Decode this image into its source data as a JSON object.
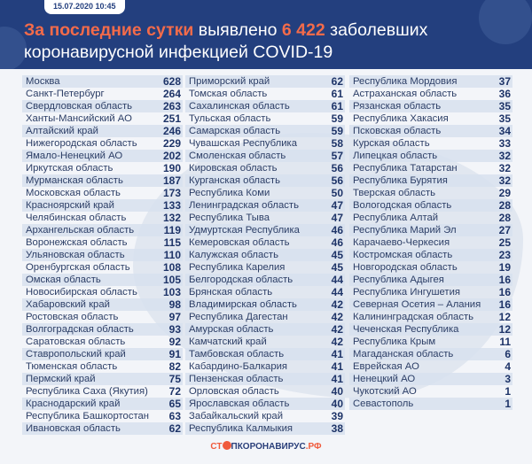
{
  "header": {
    "date": "15.07.2020 10:45",
    "title_hl": "За последние сутки",
    "title_mid": " выявлено ",
    "count": "6 422",
    "title_end": " заболевших",
    "title_line2": "коронавирусной инфекцией COVID-19"
  },
  "colors": {
    "header_bg": "#233f7e",
    "accent": "#f36b4a"
  },
  "columns": [
    [
      [
        "Москва",
        "628"
      ],
      [
        "Санкт-Петербург",
        "264"
      ],
      [
        "Свердловская область",
        "263"
      ],
      [
        "Ханты-Мансийский АО",
        "251"
      ],
      [
        "Алтайский край",
        "246"
      ],
      [
        "Нижегородская область",
        "229"
      ],
      [
        "Ямало-Ненецкий АО",
        "202"
      ],
      [
        "Иркутская область",
        "190"
      ],
      [
        "Мурманская область",
        "187"
      ],
      [
        "Московская область",
        "173"
      ],
      [
        "Красноярский край",
        "133"
      ],
      [
        "Челябинская область",
        "132"
      ],
      [
        "Архангельская область",
        "119"
      ],
      [
        "Воронежская область",
        "115"
      ],
      [
        "Ульяновская область",
        "110"
      ],
      [
        "Оренбургская область",
        "108"
      ],
      [
        "Омская область",
        "105"
      ],
      [
        "Новосибирская область",
        "103"
      ],
      [
        "Хабаровский край",
        "98"
      ],
      [
        "Ростовская область",
        "97"
      ],
      [
        "Волгоградская область",
        "93"
      ],
      [
        "Саратовская область",
        "92"
      ],
      [
        "Ставропольский край",
        "91"
      ],
      [
        "Тюменская область",
        "82"
      ],
      [
        "Пермский край",
        "75"
      ],
      [
        "Республика Саха (Якутия)",
        "72"
      ],
      [
        "Краснодарский край",
        "65"
      ],
      [
        "Республика Башкортостан",
        "63"
      ],
      [
        "Ивановская область",
        "62"
      ]
    ],
    [
      [
        "Приморский край",
        "62"
      ],
      [
        "Томская область",
        "61"
      ],
      [
        "Сахалинская область",
        "61"
      ],
      [
        "Тульская область",
        "59"
      ],
      [
        "Самарская область",
        "59"
      ],
      [
        "Чувашская Республика",
        "58"
      ],
      [
        "Смоленская область",
        "57"
      ],
      [
        "Кировская область",
        "56"
      ],
      [
        "Курганская область",
        "56"
      ],
      [
        "Республика Коми",
        "50"
      ],
      [
        "Ленинградская область",
        "47"
      ],
      [
        "Республика Тыва",
        "47"
      ],
      [
        "Удмуртская Республика",
        "46"
      ],
      [
        "Кемеровская область",
        "46"
      ],
      [
        "Калужская область",
        "45"
      ],
      [
        "Республика Карелия",
        "45"
      ],
      [
        "Белгородская область",
        "44"
      ],
      [
        "Брянская область",
        "44"
      ],
      [
        "Владимирская область",
        "42"
      ],
      [
        "Республика Дагестан",
        "42"
      ],
      [
        "Амурская область",
        "42"
      ],
      [
        "Камчатский край",
        "42"
      ],
      [
        "Тамбовская область",
        "41"
      ],
      [
        "Кабардино-Балкария",
        "41"
      ],
      [
        "Пензенская область",
        "41"
      ],
      [
        "Орловская область",
        "40"
      ],
      [
        "Ярославская область",
        "40"
      ],
      [
        "Забайкальский край",
        "39"
      ],
      [
        "Республика Калмыкия",
        "38"
      ]
    ],
    [
      [
        "Республика Мордовия",
        "37"
      ],
      [
        "Астраханская область",
        "36"
      ],
      [
        "Рязанская область",
        "35"
      ],
      [
        "Республика Хакасия",
        "35"
      ],
      [
        "Псковская область",
        "34"
      ],
      [
        "Курская область",
        "33"
      ],
      [
        "Липецкая область",
        "32"
      ],
      [
        "Республика Татарстан",
        "32"
      ],
      [
        "Республика Бурятия",
        "32"
      ],
      [
        "Тверская область",
        "29"
      ],
      [
        "Вологодская область",
        "28"
      ],
      [
        "Республика Алтай",
        "28"
      ],
      [
        "Республика Марий Эл",
        "27"
      ],
      [
        "Карачаево-Черкесия",
        "25"
      ],
      [
        "Костромская область",
        "23"
      ],
      [
        "Новгородская область",
        "19"
      ],
      [
        "Республика Адыгея",
        "16"
      ],
      [
        "Республика Ингушетия",
        "16"
      ],
      [
        "Северная Осетия – Алания",
        "16"
      ],
      [
        "Калининградская область",
        "12"
      ],
      [
        "Чеченская Республика",
        "12"
      ],
      [
        "Республика Крым",
        "11"
      ],
      [
        "Магаданская область",
        "6"
      ],
      [
        "Еврейская АО",
        "4"
      ],
      [
        "Ненецкий АО",
        "3"
      ],
      [
        "Чукотский АО",
        "1"
      ],
      [
        "Севастополь",
        "1"
      ]
    ]
  ],
  "footer": {
    "logo_a": "СТ",
    "logo_b": "ПКОРОНАВИРУС",
    "logo_c": ".РФ"
  }
}
